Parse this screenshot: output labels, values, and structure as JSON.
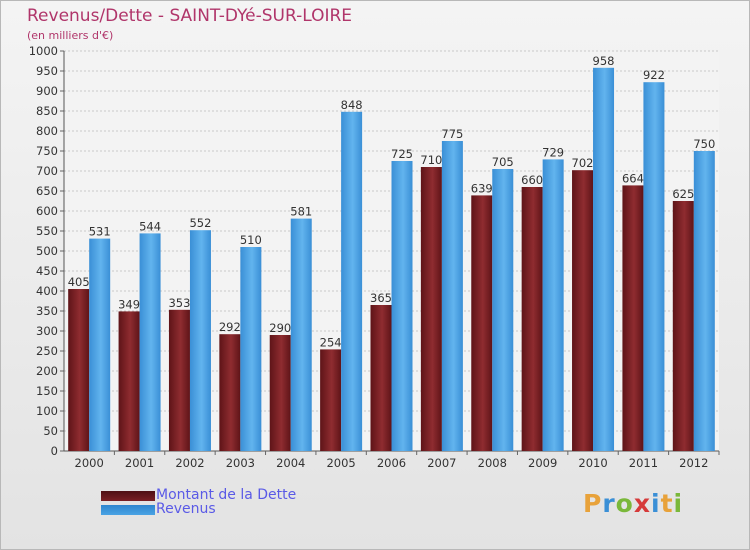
{
  "chart_data": {
    "type": "bar",
    "title": "Revenus/Dette - SAINT-DYé-SUR-LOIRE",
    "subtitle": "(en milliers d'€)",
    "categories": [
      "2000",
      "2001",
      "2002",
      "2003",
      "2004",
      "2005",
      "2006",
      "2007",
      "2008",
      "2009",
      "2010",
      "2011",
      "2012"
    ],
    "series": [
      {
        "name": "Montant de la Dette",
        "color": "#7a1f24",
        "values": [
          405,
          349,
          353,
          292,
          290,
          254,
          365,
          710,
          639,
          660,
          702,
          664,
          625
        ]
      },
      {
        "name": "Revenus",
        "color": "#4aa3e4",
        "values": [
          531,
          544,
          552,
          510,
          581,
          848,
          725,
          775,
          705,
          729,
          958,
          922,
          750
        ]
      }
    ],
    "ylim": [
      0,
      1000
    ],
    "ytick_step": 50,
    "grid": true,
    "legend": "bottom-left"
  },
  "logo": {
    "letters": [
      "P",
      "r",
      "o",
      "x",
      "i",
      "t",
      "i"
    ],
    "colors": [
      "#e8a23a",
      "#3a8fd6",
      "#7ab83a",
      "#d63a3a",
      "#3a8fd6",
      "#e8a23a",
      "#7ab83a"
    ]
  }
}
